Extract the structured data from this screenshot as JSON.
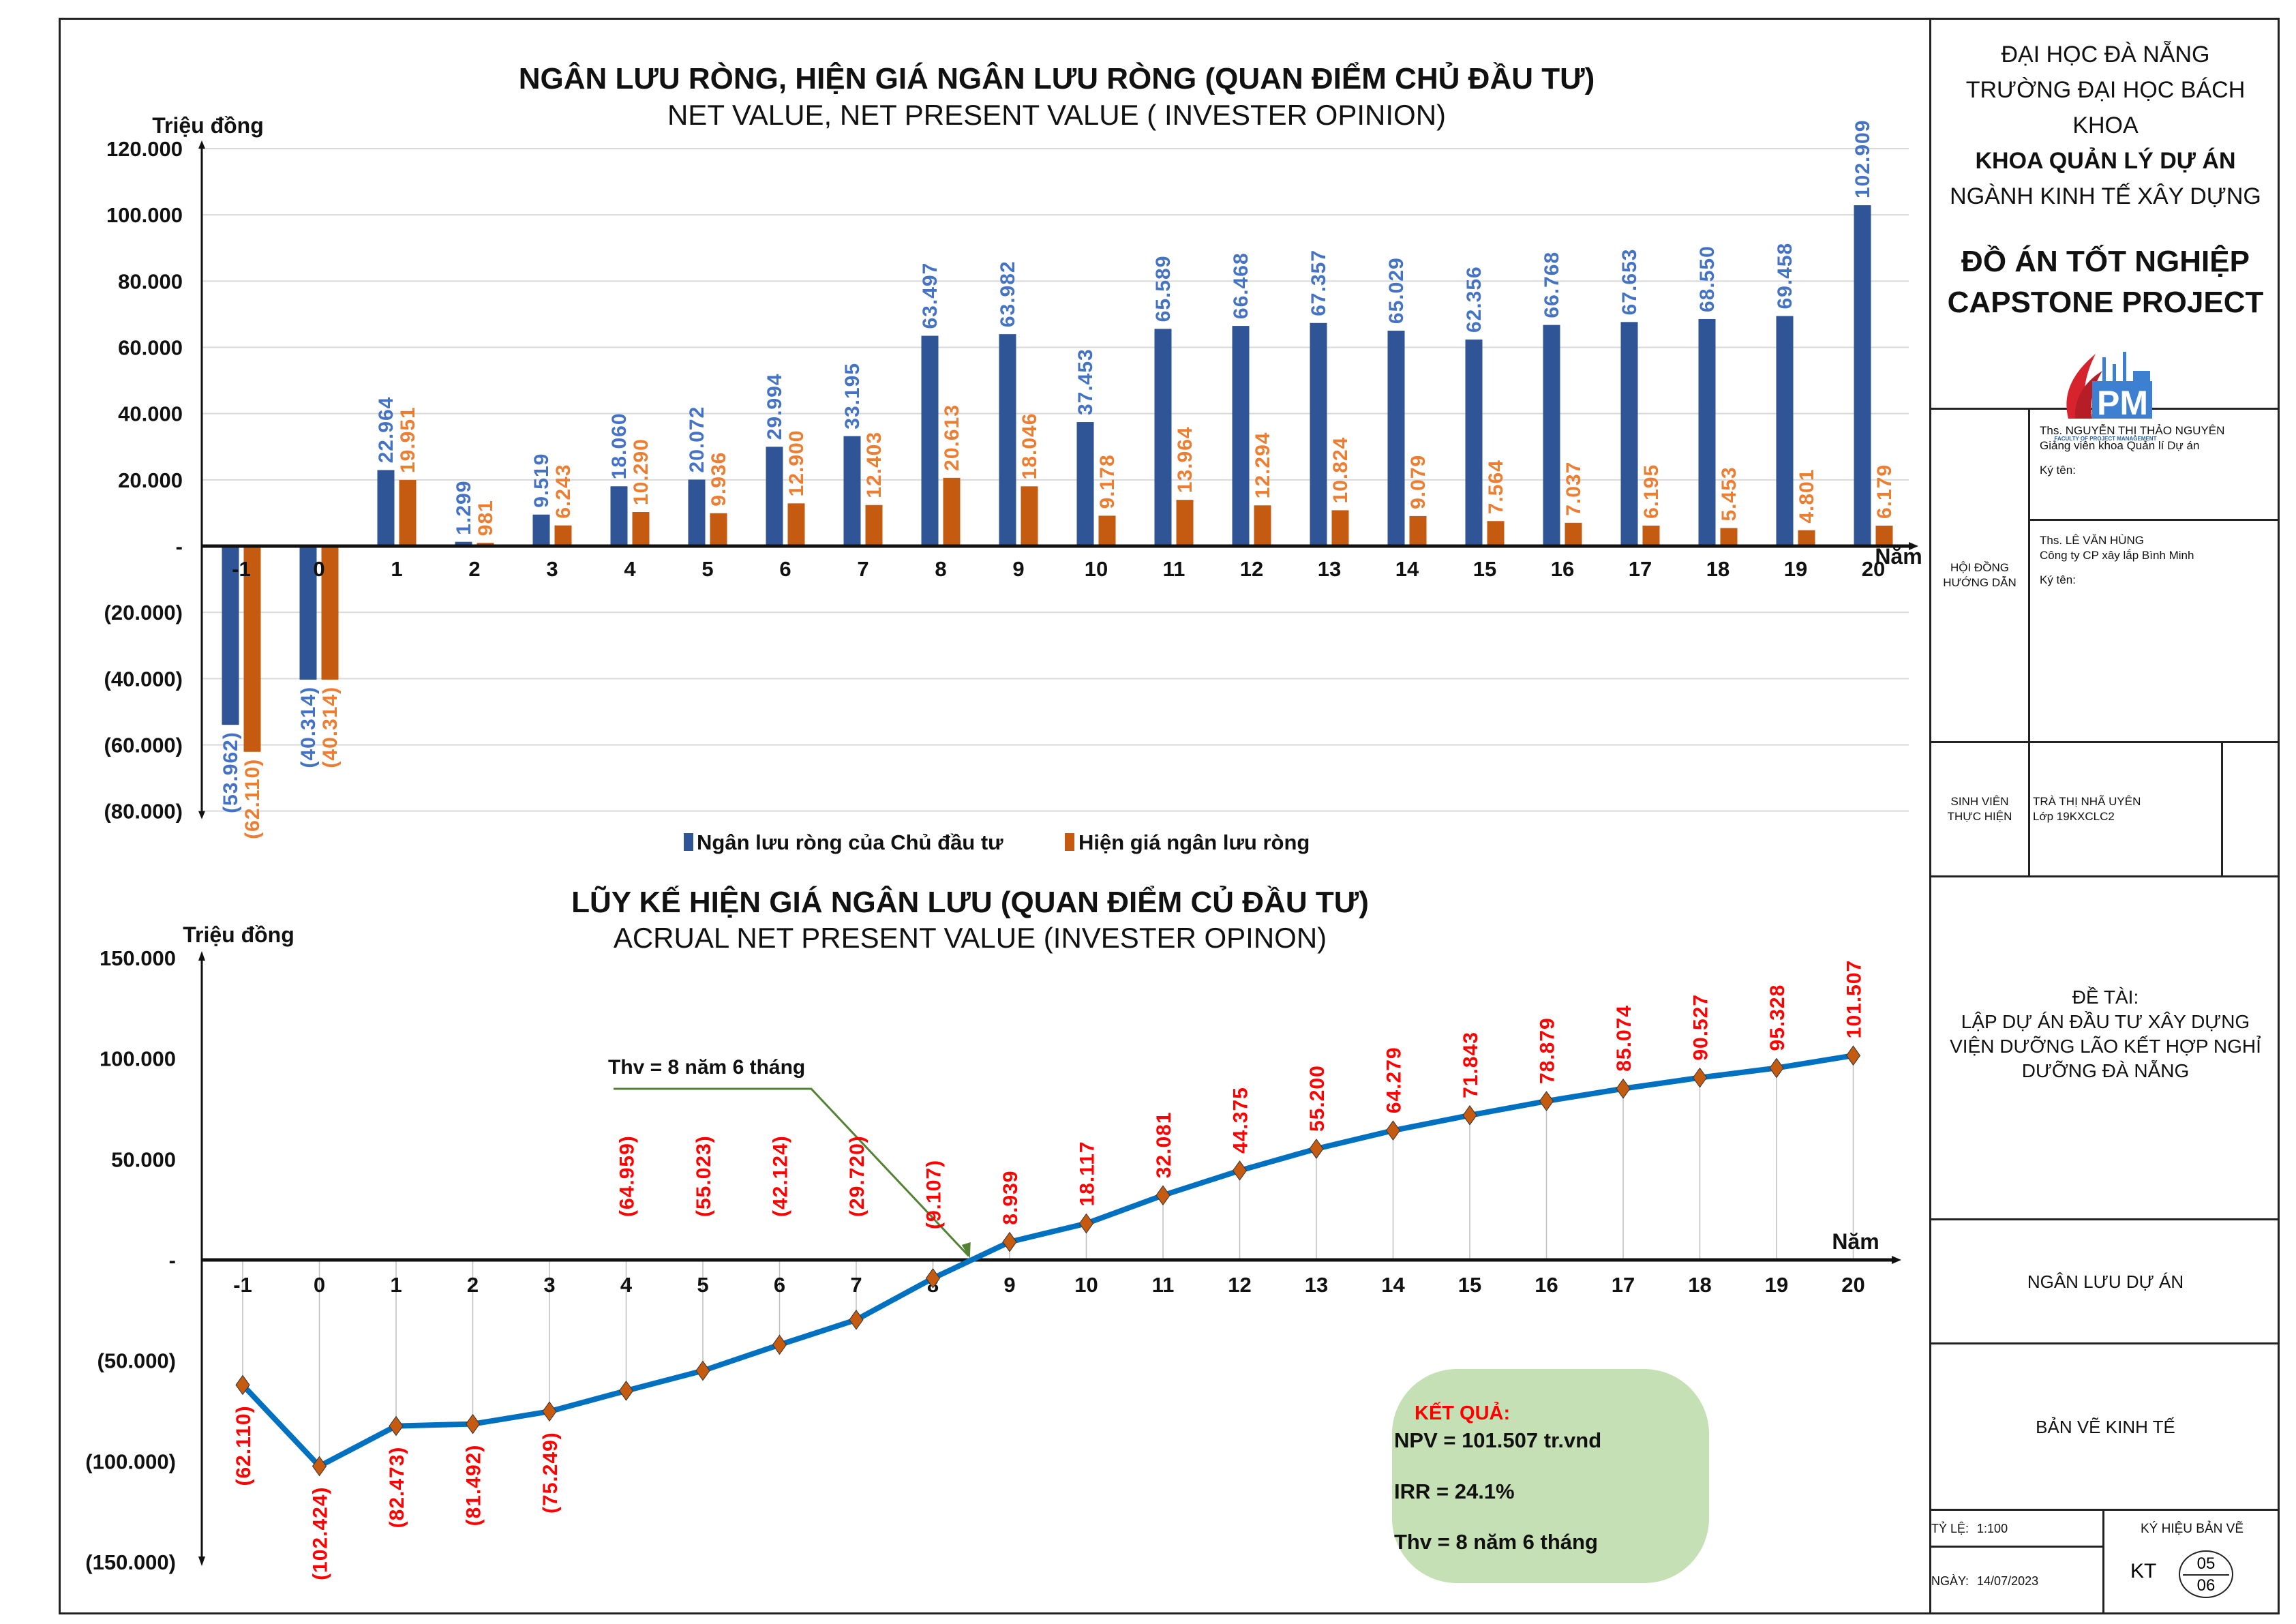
{
  "chart_data": [
    {
      "type": "bar",
      "title": "NGÂN LƯU RÒNG, HIỆN GIÁ NGÂN LƯU RÒNG (QUAN ĐIỂM CHỦ ĐẦU TƯ)",
      "subtitle": "NET VALUE, NET PRESENT VALUE ( INVESTER OPINION)",
      "ylabel": "Triệu đồng",
      "xlabel": "Năm",
      "ylim": [
        -80000,
        120000
      ],
      "yticks": [
        120000,
        100000,
        80000,
        60000,
        40000,
        20000,
        0,
        -20000,
        -40000,
        -60000,
        -80000
      ],
      "ytick_labels": [
        "120.000",
        "100.000",
        "80.000",
        "60.000",
        "40.000",
        "20.000",
        "-",
        "(20.000)",
        "(40.000)",
        "(60.000)",
        "(80.000)"
      ],
      "grid": true,
      "legend": "bottom",
      "categories": [
        "-1",
        "0",
        "1",
        "2",
        "3",
        "4",
        "5",
        "6",
        "7",
        "8",
        "9",
        "10",
        "11",
        "12",
        "13",
        "14",
        "15",
        "16",
        "17",
        "18",
        "19",
        "20"
      ],
      "series": [
        {
          "name": "Ngân lưu ròng của Chủ đầu tư",
          "color": "#2f5597",
          "label_color": "#4472c4",
          "values": [
            -53962,
            -40314,
            22964,
            1299,
            9519,
            18060,
            20072,
            29994,
            33195,
            63497,
            63982,
            37453,
            65589,
            66468,
            67357,
            65029,
            62356,
            66768,
            67653,
            68550,
            69458,
            102909
          ],
          "labels": [
            "(53.962)",
            "(40.314)",
            "22.964",
            "1.299",
            "9.519",
            "18.060",
            "20.072",
            "29.994",
            "33.195",
            "63.497",
            "63.982",
            "37.453",
            "65.589",
            "66.468",
            "67.357",
            "65.029",
            "62.356",
            "66.768",
            "67.653",
            "68.550",
            "69.458",
            "102.909"
          ]
        },
        {
          "name": "Hiện giá ngân lưu ròng",
          "color": "#c55a11",
          "label_color": "#ed7d31",
          "values": [
            -62110,
            -40314,
            19951,
            981,
            6243,
            10290,
            9936,
            12900,
            12403,
            20613,
            18046,
            9178,
            13964,
            12294,
            10824,
            9079,
            7564,
            7037,
            6195,
            5453,
            4801,
            6179
          ],
          "labels": [
            "(62.110)",
            "(40.314)",
            "19.951",
            "981",
            "6.243",
            "10.290",
            "9.936",
            "12.900",
            "12.403",
            "20.613",
            "18.046",
            "9.178",
            "13.964",
            "12.294",
            "10.824",
            "9.079",
            "7.564",
            "7.037",
            "6.195",
            "5.453",
            "4.801",
            "6.179"
          ]
        }
      ]
    },
    {
      "type": "line",
      "title": "LŨY KẾ HIỆN GIÁ NGÂN LƯU (QUAN ĐIỂM CỦ ĐẦU TƯ)",
      "subtitle": "ACRUAL NET PRESENT VALUE (INVESTER OPINON)",
      "ylabel": "Triệu đồng",
      "xlabel": "Năm",
      "ylim": [
        -150000,
        150000
      ],
      "yticks": [
        150000,
        100000,
        50000,
        0,
        -50000,
        -100000,
        -150000
      ],
      "ytick_labels": [
        "150.000",
        "100.000",
        "50.000",
        "-",
        "(50.000)",
        "(100.000)",
        "(150.000)"
      ],
      "grid": false,
      "categories": [
        "-1",
        "0",
        "1",
        "2",
        "3",
        "4",
        "5",
        "6",
        "7",
        "8",
        "9",
        "10",
        "11",
        "12",
        "13",
        "14",
        "15",
        "16",
        "17",
        "18",
        "19",
        "20"
      ],
      "series": [
        {
          "name": "Lũy kế hiện giá ngân lưu",
          "line_color": "#0070c0",
          "marker_color": "#c55a11",
          "label_color": "#ff0000",
          "values": [
            -62110,
            -102424,
            -82473,
            -81492,
            -75249,
            -64959,
            -55023,
            -42124,
            -29720,
            -9107,
            8939,
            18117,
            32081,
            44375,
            55200,
            64279,
            71843,
            78879,
            85074,
            90527,
            95328,
            101507
          ],
          "labels": [
            "(62.110)",
            "(102.424)",
            "(82.473)",
            "(81.492)",
            "(75.249)",
            "(64.959)",
            "(55.023)",
            "(42.124)",
            "(29.720)",
            "(9.107)",
            "8.939",
            "18.117",
            "32.081",
            "44.375",
            "55.200",
            "64.279",
            "71.843",
            "78.879",
            "85.074",
            "90.527",
            "95.328",
            "101.507"
          ]
        }
      ],
      "annotation": {
        "text": "Thv = 8 năm 6 tháng",
        "points_to_year": 8.5,
        "color": "#548235"
      },
      "result_box": {
        "heading": "KẾT QUẢ:",
        "lines": [
          "NPV = 101.507 tr.vnd",
          "IRR = 24.1%",
          "Thv = 8 năm 6 tháng"
        ],
        "fill": "#c5e0b4",
        "heading_color": "#ff0000"
      }
    }
  ],
  "title_block": {
    "university": "ĐẠI HỌC ĐÀ NẴNG",
    "school": "TRƯỜNG ĐẠI HỌC BÁCH KHOA",
    "faculty": "KHOA QUẢN LÝ DỰ ÁN",
    "major": "NGÀNH KINH TẾ XÂY DỰNG",
    "project_vi": "ĐỒ ÁN TỐT NGHIỆP",
    "project_en": "CAPSTONE PROJECT",
    "logo_caption": "FACULTY OF PROJECT MANAGEMENT",
    "advisors_label_1": "HỘI ĐỒNG",
    "advisors_label_2": "HƯỚNG DẪN",
    "advisor1_name": "Ths. NGUYỄN THỊ THẢO NGUYÊN",
    "advisor1_role": "Giảng viên khoa Quản lí Dự án",
    "advisor1_sign": "Ký tên:",
    "advisor2_name": "Ths. LÊ VĂN HÙNG",
    "advisor2_role": "Công ty CP xây lắp Bình Minh",
    "advisor2_sign": "Ký tên:",
    "student_label_1": "SINH VIÊN",
    "student_label_2": "THỰC HIỆN",
    "student_name": "TRÀ THỊ NHÃ UYÊN",
    "student_class": "Lớp 19KXCLC2",
    "topic_label": "ĐỀ TÀI:",
    "topic_line1": "LẬP DỰ ÁN ĐẦU TƯ XÂY DỰNG",
    "topic_line2": "VIỆN DƯỠNG LÃO KẾT HỢP NGHỈ",
    "topic_line3": "DƯỠNG ĐÀ NẴNG",
    "drawing_name": "NGÂN LƯU DỰ ÁN",
    "drawing_type": "BẢN VẼ KINH TẾ",
    "scale_label": "TỶ LỆ:",
    "scale_value": "1:100",
    "date_label": "NGÀY:",
    "date_value": "14/07/2023",
    "code_label": "KÝ HIỆU BẢN VẼ",
    "code_prefix": "KT",
    "sheet_number": "05",
    "sheet_total": "06"
  }
}
